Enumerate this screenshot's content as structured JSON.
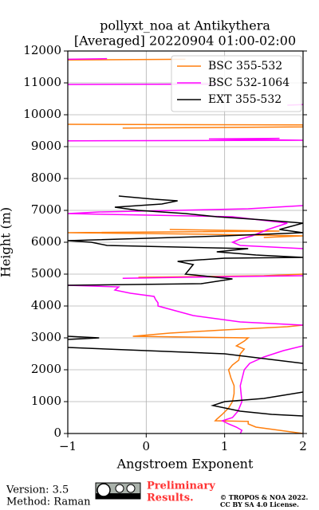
{
  "chart_data": {
    "type": "line",
    "title": "pollyxt_noa at Antikythera",
    "subtitle": "[Averaged] 20220904 01:00-02:00",
    "x_label": "Angstroem Exponent",
    "y_label": "Height (m)",
    "xlim": [
      -1,
      2
    ],
    "ylim": [
      0,
      12000
    ],
    "xticks": [
      {
        "value": -1,
        "label": "−1"
      },
      0,
      1,
      2
    ],
    "yticks": [
      0,
      1000,
      2000,
      3000,
      4000,
      5000,
      6000,
      7000,
      8000,
      9000,
      10000,
      11000,
      12000
    ],
    "grid": true,
    "legend": "upper right",
    "series": [
      {
        "name": "BSC 355-532",
        "color": "#ff7f0e",
        "x": [
          2.0,
          1.7,
          1.4,
          1.3,
          1.3,
          0.88,
          0.9,
          0.97,
          1.05,
          1.1,
          1.12,
          1.12,
          1.08,
          1.05,
          1.1,
          1.18,
          1.2,
          1.25,
          1.15,
          1.25,
          1.3,
          -0.17,
          0.3,
          1.0,
          1.8,
          2.0,
          null,
          -0.1,
          1.5,
          2.0,
          null,
          1.5,
          2.0,
          0.8,
          -1.0,
          1.7,
          0.3,
          null,
          -0.3,
          2.0,
          2.0,
          -1.0,
          null,
          -1.0,
          0.5
        ],
        "y": [
          0,
          100,
          200,
          300,
          380,
          400,
          450,
          600,
          800,
          1000,
          1250,
          1500,
          1750,
          2000,
          2150,
          2300,
          2500,
          2650,
          2750,
          2900,
          3000,
          3050,
          3150,
          3250,
          3350,
          3400,
          null,
          4900,
          4950,
          5000,
          null,
          6150,
          6200,
          6250,
          6300,
          6350,
          6400,
          null,
          9580,
          9620,
          9680,
          9700,
          null,
          11720,
          11740
        ]
      },
      {
        "name": "BSC 532-1064",
        "color": "#ff00ff",
        "x": [
          1.2,
          1.22,
          1.15,
          1.05,
          0.97,
          1.1,
          1.17,
          1.22,
          1.2,
          1.25,
          1.32,
          1.5,
          1.75,
          2.0,
          null,
          2.0,
          1.2,
          0.6,
          0.3,
          0.15,
          0.15,
          0.12,
          0.1,
          -0.2,
          -0.4,
          -0.35,
          -1.0,
          null,
          -0.3,
          1.0,
          2.0,
          null,
          2.0,
          1.2,
          1.1,
          1.2,
          1.35,
          1.55,
          1.8,
          1.1,
          -1.0,
          -0.6,
          1.3,
          2.0,
          null,
          -1.0,
          2.0,
          0.8,
          1.7,
          null,
          1.8,
          2.0,
          null,
          -1.0,
          0.9,
          null,
          -1.0,
          -0.5
        ],
        "y": [
          0,
          100,
          200,
          300,
          400,
          500,
          700,
          1000,
          1500,
          2000,
          2200,
          2400,
          2600,
          2750,
          null,
          3400,
          3500,
          3700,
          3900,
          4000,
          4100,
          4200,
          4300,
          4400,
          4500,
          4600,
          4650,
          null,
          4870,
          4920,
          4950,
          null,
          5800,
          5900,
          6000,
          6100,
          6200,
          6400,
          6600,
          6800,
          6900,
          6950,
          7050,
          7150,
          null,
          9180,
          9200,
          9240,
          9260,
          null,
          10300,
          10320,
          null,
          10950,
          10960,
          null,
          11740,
          11760
        ]
      },
      {
        "name": "EXT 355-532",
        "color": "#000000",
        "x": [
          2.0,
          1.6,
          1.2,
          0.85,
          1.0,
          1.5,
          2.0,
          null,
          2.0,
          1.0,
          0.0,
          -1.0,
          null,
          -1.0,
          -0.6,
          -1.0,
          null,
          -1.0,
          0.7,
          1.1,
          0.5,
          0.6,
          0.4,
          1.0,
          2.0,
          1.4,
          0.9,
          1.3,
          -0.5,
          -0.7,
          -1.0,
          1.0,
          2.0,
          1.7,
          2.0,
          1.5,
          0.9,
          0.5,
          -0.1,
          -0.4,
          0.2,
          0.4,
          0.1,
          -0.35
        ],
        "y": [
          550,
          600,
          700,
          880,
          1000,
          1100,
          1300,
          null,
          2200,
          2500,
          2600,
          2700,
          null,
          2950,
          3000,
          3050,
          null,
          4650,
          4700,
          4850,
          5000,
          5300,
          5400,
          5500,
          5525,
          5600,
          5700,
          5800,
          5900,
          6000,
          6050,
          6200,
          6300,
          6400,
          6600,
          6700,
          6800,
          6900,
          7000,
          7100,
          7200,
          7300,
          7350,
          7450
        ]
      }
    ]
  },
  "footer": {
    "version": "Version: 3.5",
    "method": "Method: Raman",
    "notice": [
      "Preliminary",
      "Results."
    ],
    "copyright": "© TROPOS & NOA 2022.",
    "license": "CC BY SA 4.0 License."
  }
}
